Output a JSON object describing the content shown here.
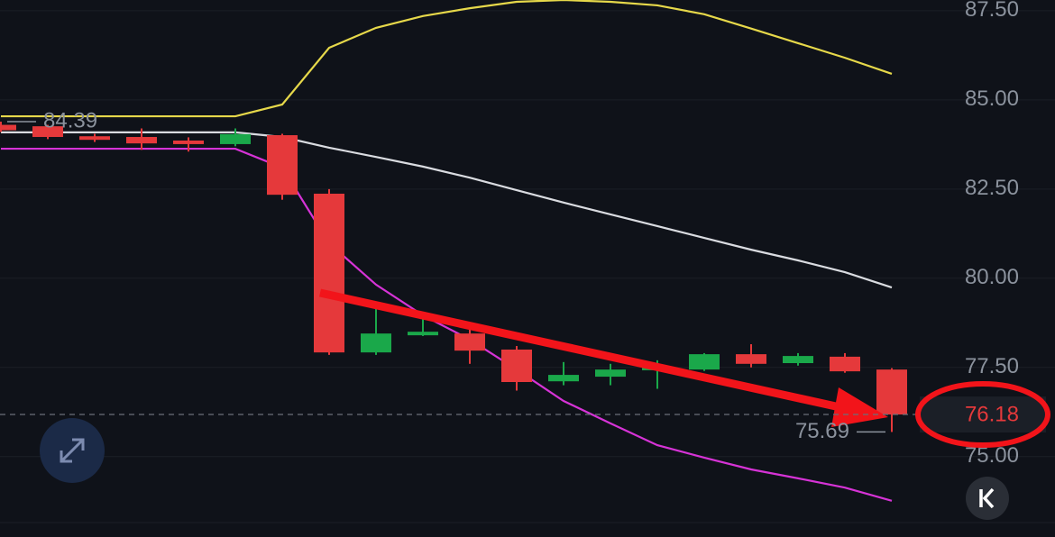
{
  "chart_data": {
    "type": "candlestick",
    "up_color": "#1aa84a",
    "down_color": "#e5393b",
    "open": [
      84.3,
      84.26,
      83.98,
      83.96,
      83.86,
      83.76,
      84.01,
      82.37,
      77.92,
      78.4,
      78.45,
      78.0,
      77.11,
      77.24,
      77.42,
      77.44,
      77.87,
      77.62,
      77.8,
      77.44
    ],
    "high": [
      84.39,
      84.3,
      84.05,
      84.2,
      83.95,
      84.2,
      84.05,
      82.5,
      79.15,
      78.9,
      78.6,
      78.1,
      77.65,
      77.6,
      77.7,
      77.9,
      78.15,
      77.9,
      77.9,
      77.48
    ],
    "low": [
      84.1,
      83.9,
      83.82,
      83.6,
      83.55,
      83.7,
      82.2,
      77.85,
      77.85,
      78.38,
      77.6,
      76.85,
      77.0,
      77.0,
      76.9,
      77.4,
      77.5,
      77.55,
      77.35,
      75.69
    ],
    "close": [
      84.15,
      83.96,
      83.88,
      83.78,
      83.76,
      84.04,
      82.34,
      77.92,
      78.45,
      78.5,
      77.97,
      77.09,
      77.29,
      77.44,
      77.49,
      77.87,
      77.6,
      77.82,
      77.39,
      76.18
    ],
    "overlays": [
      {
        "color": "#e6d84a",
        "values": [
          84.54,
          84.54,
          84.54,
          84.54,
          84.54,
          84.54,
          84.87,
          86.46,
          87.02,
          87.35,
          87.57,
          87.75,
          87.8,
          87.75,
          87.65,
          87.4,
          87.0,
          86.59,
          86.18,
          85.73
        ]
      },
      {
        "color": "#d9dbe0",
        "values": [
          84.09,
          84.09,
          84.09,
          84.09,
          84.09,
          84.09,
          83.96,
          83.66,
          83.4,
          83.13,
          82.82,
          82.47,
          82.12,
          81.79,
          81.46,
          81.13,
          80.8,
          80.5,
          80.17,
          79.74
        ]
      },
      {
        "color": "#d633d6",
        "values": [
          83.63,
          83.63,
          83.63,
          83.63,
          83.63,
          83.63,
          83.1,
          80.98,
          79.82,
          78.96,
          78.28,
          77.44,
          76.56,
          75.93,
          75.32,
          74.97,
          74.64,
          74.39,
          74.13,
          73.76
        ]
      }
    ],
    "ylim": [
      73.2,
      87.8
    ],
    "yticks": [
      {
        "value": 87.5,
        "label": "87.50"
      },
      {
        "value": 85,
        "label": "85.00"
      },
      {
        "value": 82.5,
        "label": "82.50"
      },
      {
        "value": 80,
        "label": "80.00"
      },
      {
        "value": 77.5,
        "label": "77.50"
      },
      {
        "value": 75,
        "label": "75.00"
      }
    ],
    "grid": true
  }
}
